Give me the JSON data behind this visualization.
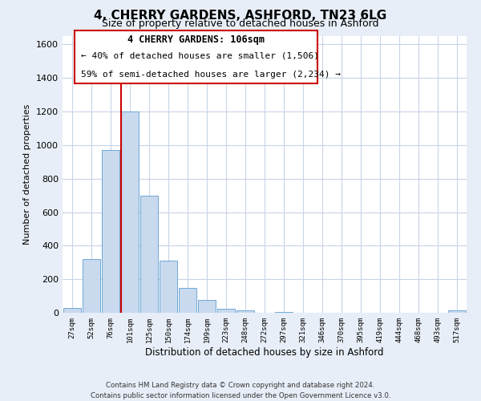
{
  "title": "4, CHERRY GARDENS, ASHFORD, TN23 6LG",
  "subtitle": "Size of property relative to detached houses in Ashford",
  "xlabel": "Distribution of detached houses by size in Ashford",
  "ylabel": "Number of detached properties",
  "bin_labels": [
    "27sqm",
    "52sqm",
    "76sqm",
    "101sqm",
    "125sqm",
    "150sqm",
    "174sqm",
    "199sqm",
    "223sqm",
    "248sqm",
    "272sqm",
    "297sqm",
    "321sqm",
    "346sqm",
    "370sqm",
    "395sqm",
    "419sqm",
    "444sqm",
    "468sqm",
    "493sqm",
    "517sqm"
  ],
  "bar_heights": [
    30,
    320,
    970,
    1200,
    700,
    310,
    150,
    75,
    25,
    15,
    0,
    5,
    0,
    0,
    0,
    0,
    0,
    0,
    0,
    0,
    15
  ],
  "bar_color": "#c9d9ee",
  "bar_edge_color": "#6fa8d6",
  "property_line_color": "#cc0000",
  "ylim": [
    0,
    1650
  ],
  "yticks": [
    0,
    200,
    400,
    600,
    800,
    1000,
    1200,
    1400,
    1600
  ],
  "annotation_title": "4 CHERRY GARDENS: 106sqm",
  "annotation_line1": "← 40% of detached houses are smaller (1,506)",
  "annotation_line2": "59% of semi-detached houses are larger (2,234) →",
  "annotation_box_color": "#ffffff",
  "annotation_box_edge": "#cc0000",
  "footer_line1": "Contains HM Land Registry data © Crown copyright and database right 2024.",
  "footer_line2": "Contains public sector information licensed under the Open Government Licence v3.0.",
  "bg_color": "#e8eef7",
  "plot_bg_color": "#ffffff",
  "grid_color": "#c8d4e8"
}
